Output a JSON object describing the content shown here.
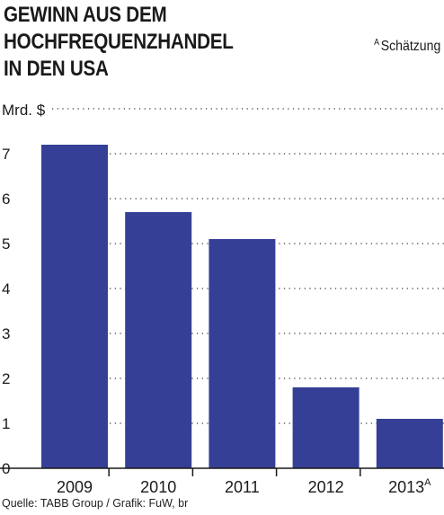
{
  "title_line1": "GEWINN AUS DEM HOCHFREQUENZHANDEL",
  "title_line2": "IN DEN USA",
  "footnote": {
    "marker": "A",
    "text": "Schätzung"
  },
  "source": "Quelle: TABB Group / Grafik: FuW, br",
  "colors": {
    "bar": "#363f96",
    "text": "#1a1a1a",
    "grid": "#333333"
  },
  "chart_data": {
    "type": "bar",
    "title": "GEWINN AUS DEM HOCHFREQUENZHANDEL IN DEN USA",
    "ylabel": "Mrd. $",
    "xlabel": "",
    "categories": [
      "2009",
      "2010",
      "2011",
      "2012",
      "2013"
    ],
    "category_markers": [
      "",
      "",
      "",
      "",
      "A"
    ],
    "values": [
      7.2,
      5.7,
      5.1,
      1.8,
      1.1
    ],
    "yticks": [
      0,
      1,
      2,
      3,
      4,
      5,
      6,
      7
    ],
    "ylim": [
      0,
      8
    ],
    "grid": true,
    "grid_style": "dotted"
  }
}
